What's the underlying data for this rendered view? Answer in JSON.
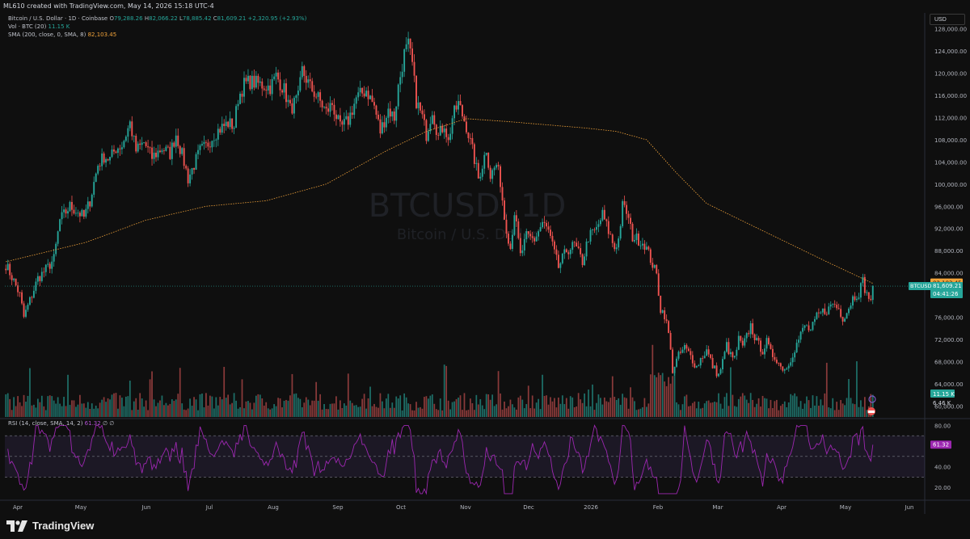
{
  "header": {
    "credit": "ML610 created with TradingView.com, May 14, 2026 15:18 UTC-4",
    "currency": "USD"
  },
  "legend": {
    "symbol": "Bitcoin / U.S. Dollar · 1D · Coinbase",
    "o_key": "O",
    "o": "79,288.26",
    "h_key": "H",
    "h": "82,066.22",
    "l_key": "L",
    "l": "78,885.42",
    "c_key": "C",
    "c": "81,609.21",
    "change": "+2,320.95 (+2.93%)",
    "vol_label": "Vol · BTC (20)",
    "vol_value": "11.15 K",
    "sma_label": "SMA (200, close, 0, SMA, 8)",
    "sma_value": "82,103.45",
    "rsi_label": "RSI (14, close, SMA, 14, 2)",
    "rsi_value": "61.32",
    "rsi_extra": "∅ ∅"
  },
  "watermark": {
    "symbol": "BTCUSD, 1D",
    "name": "Bitcoin / U.S. Dollar"
  },
  "colors": {
    "up": "#26a69a",
    "down": "#ef5350",
    "sma": "#f2a33a",
    "rsi": "#9c27b0",
    "bg": "#0f0f0f"
  },
  "chart_data": {
    "type": "candlestick",
    "x_ticks": [
      "Apr",
      "May",
      "Jun",
      "Jul",
      "Aug",
      "Sep",
      "Oct",
      "Nov",
      "Dec",
      "2026",
      "Feb",
      "Mar",
      "Apr",
      "May",
      "Jun"
    ],
    "y_ticks": [
      "128,000.00",
      "124,000.00",
      "120,000.00",
      "116,000.00",
      "112,000.00",
      "108,000.00",
      "104,000.00",
      "100,000.00",
      "96,000.00",
      "92,000.00",
      "88,000.00",
      "84,000.00",
      "76,000.00",
      "72,000.00",
      "68,000.00",
      "64,000.00",
      "60,000.00"
    ],
    "ylim": [
      58000,
      130000
    ],
    "close_anchors": [
      [
        0,
        85500
      ],
      [
        4,
        82500
      ],
      [
        7,
        80000
      ],
      [
        9,
        76000
      ],
      [
        12,
        79000
      ],
      [
        16,
        83000
      ],
      [
        21,
        85000
      ],
      [
        24,
        86500
      ],
      [
        27,
        93500
      ],
      [
        32,
        96000
      ],
      [
        36,
        95000
      ],
      [
        39,
        94000
      ],
      [
        42,
        97000
      ],
      [
        46,
        103500
      ],
      [
        49,
        105000
      ],
      [
        52,
        104500
      ],
      [
        55,
        106500
      ],
      [
        58,
        107000
      ],
      [
        62,
        111000
      ],
      [
        65,
        106000
      ],
      [
        69,
        107500
      ],
      [
        73,
        104800
      ],
      [
        78,
        106500
      ],
      [
        82,
        105500
      ],
      [
        85,
        109000
      ],
      [
        89,
        104000
      ],
      [
        91,
        101000
      ],
      [
        94,
        103500
      ],
      [
        97,
        106000
      ],
      [
        100,
        106800
      ],
      [
        104,
        109000
      ],
      [
        107,
        110000
      ],
      [
        111,
        111000
      ],
      [
        114,
        110500
      ],
      [
        116,
        115500
      ],
      [
        119,
        118000
      ],
      [
        122,
        118500
      ],
      [
        127,
        118000
      ],
      [
        132,
        117500
      ],
      [
        135,
        119500
      ],
      [
        139,
        117000
      ],
      [
        142,
        113500
      ],
      [
        146,
        115500
      ],
      [
        148,
        120500
      ],
      [
        152,
        117500
      ],
      [
        156,
        115500
      ],
      [
        160,
        113000
      ],
      [
        163,
        114500
      ],
      [
        167,
        110000
      ],
      [
        171,
        111500
      ],
      [
        175,
        115500
      ],
      [
        180,
        117000
      ],
      [
        184,
        114000
      ],
      [
        187,
        109500
      ],
      [
        191,
        113500
      ],
      [
        194,
        112000
      ],
      [
        196,
        117500
      ],
      [
        199,
        123500
      ],
      [
        201,
        125000
      ],
      [
        203,
        121500
      ],
      [
        205,
        115000
      ],
      [
        208,
        112000
      ],
      [
        210,
        109000
      ],
      [
        213,
        113500
      ],
      [
        216,
        108500
      ],
      [
        219,
        111000
      ],
      [
        221,
        107500
      ],
      [
        223,
        112000
      ],
      [
        226,
        114500
      ],
      [
        230,
        110500
      ],
      [
        232,
        107500
      ],
      [
        234,
        104500
      ],
      [
        236,
        101000
      ],
      [
        238,
        103500
      ],
      [
        240,
        106500
      ],
      [
        242,
        101500
      ],
      [
        245,
        103500
      ],
      [
        247,
        100500
      ],
      [
        249,
        94000
      ],
      [
        252,
        88500
      ],
      [
        254,
        95000
      ],
      [
        257,
        87000
      ],
      [
        260,
        90500
      ],
      [
        264,
        90000
      ],
      [
        268,
        93000
      ],
      [
        271,
        91500
      ],
      [
        274,
        87500
      ],
      [
        276,
        85000
      ],
      [
        278,
        86500
      ],
      [
        280,
        88000
      ],
      [
        284,
        89000
      ],
      [
        288,
        86000
      ],
      [
        291,
        90500
      ],
      [
        295,
        91800
      ],
      [
        298,
        94500
      ],
      [
        301,
        91500
      ],
      [
        304,
        88500
      ],
      [
        306,
        90000
      ],
      [
        308,
        96000
      ],
      [
        310,
        95000
      ],
      [
        313,
        90500
      ],
      [
        316,
        90000
      ],
      [
        319,
        89200
      ],
      [
        322,
        86500
      ],
      [
        325,
        83500
      ],
      [
        327,
        77500
      ],
      [
        329,
        76500
      ],
      [
        331,
        73000
      ],
      [
        333,
        66500
      ],
      [
        336,
        69000
      ],
      [
        339,
        70500
      ],
      [
        342,
        69000
      ],
      [
        345,
        67000
      ],
      [
        347,
        68500
      ],
      [
        350,
        70000
      ],
      [
        353,
        67200
      ],
      [
        356,
        65500
      ],
      [
        358,
        68000
      ],
      [
        360,
        71000
      ],
      [
        362,
        69000
      ],
      [
        364,
        68500
      ],
      [
        366,
        72000
      ],
      [
        368,
        70500
      ],
      [
        372,
        74500
      ],
      [
        375,
        71500
      ],
      [
        378,
        70000
      ],
      [
        380,
        71500
      ],
      [
        382,
        69500
      ],
      [
        385,
        68500
      ],
      [
        387,
        67000
      ],
      [
        390,
        66800
      ],
      [
        393,
        69500
      ],
      [
        396,
        72000
      ],
      [
        399,
        74500
      ],
      [
        402,
        73500
      ],
      [
        405,
        76000
      ],
      [
        408,
        77000
      ],
      [
        411,
        77500
      ],
      [
        413,
        78500
      ],
      [
        416,
        77500
      ],
      [
        418,
        76000
      ],
      [
        420,
        77000
      ],
      [
        423,
        79500
      ],
      [
        426,
        80500
      ],
      [
        428,
        82500
      ],
      [
        430,
        80000
      ],
      [
        432,
        79300
      ],
      [
        433,
        81609
      ]
    ],
    "sma_anchors": [
      [
        0,
        86000
      ],
      [
        40,
        89500
      ],
      [
        70,
        93500
      ],
      [
        100,
        96000
      ],
      [
        130,
        97000
      ],
      [
        160,
        100000
      ],
      [
        190,
        106000
      ],
      [
        210,
        109500
      ],
      [
        230,
        111800
      ],
      [
        250,
        111300
      ],
      [
        270,
        110700
      ],
      [
        290,
        110100
      ],
      [
        305,
        109500
      ],
      [
        320,
        108000
      ],
      [
        335,
        102000
      ],
      [
        350,
        96500
      ],
      [
        370,
        93000
      ],
      [
        390,
        89500
      ],
      [
        410,
        86000
      ],
      [
        433,
        82103
      ]
    ],
    "rsi_ylim": [
      10,
      85
    ],
    "rsi_ticks": [
      "80.00",
      "60.00",
      "40.00",
      "20.00"
    ],
    "rsi_bands": [
      70,
      50,
      30
    ],
    "last_price": "81,609.21",
    "last_label": "BTCUSD",
    "countdown": "04:41:26",
    "sma_last": "82,103.45",
    "vol_last": "11.15 K",
    "vol_ma_last": "6.46 K",
    "rsi_last": "61.32"
  },
  "footer": {
    "brand": "TradingView"
  }
}
